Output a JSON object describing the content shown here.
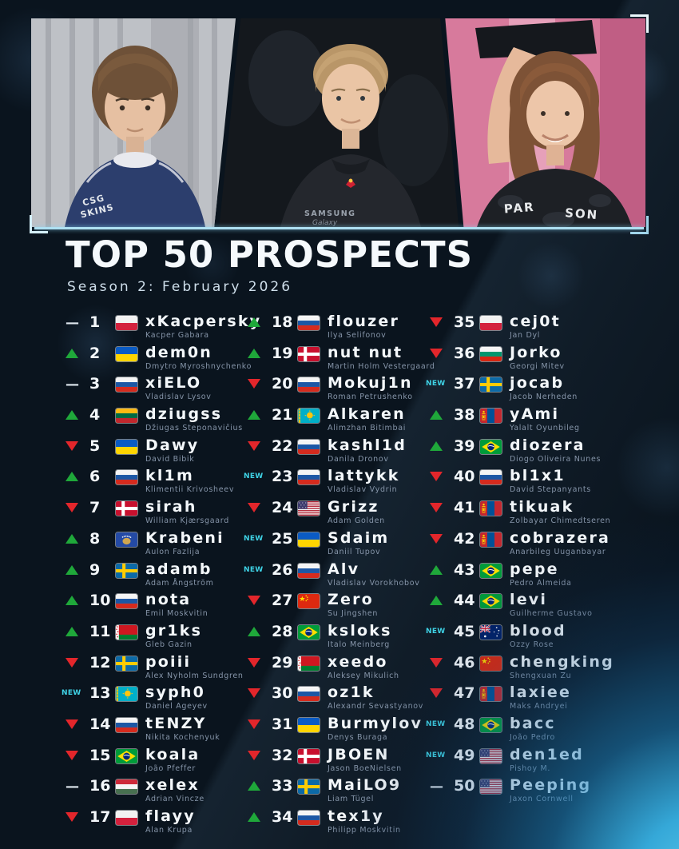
{
  "header": {
    "title": "TOP 50 PROSPECTS",
    "subtitle": "Season 2: February 2026"
  },
  "photo_banner": {
    "photos": [
      {
        "alt": "player in navy jersey in front of grey blinds",
        "jersey_text": "CSG SKINS"
      },
      {
        "alt": "player with short blond hair on dark stage background",
        "jersey_text": "SAMSUNG Galaxy"
      },
      {
        "alt": "smiling long-haired player lifting trophy on pink background",
        "jersey_text": "PAR SON"
      }
    ]
  },
  "colors": {
    "background": "#0a141e",
    "accent_cyan": "#3fd3e6",
    "up_green": "#1fa83a",
    "down_red": "#e3262b",
    "text_primary": "#f3f7fa",
    "text_secondary": "#8695a9",
    "banner_line": "#aee0f2"
  },
  "ranking": {
    "movement_symbols": {
      "up": "▲",
      "down": "▼",
      "same": "—",
      "new": "NEW"
    },
    "columns": [
      {
        "entries": [
          {
            "rank": 1,
            "movement": "same",
            "country": "poland",
            "nickname": "xKacpersky",
            "real_name": "Kacper Gabara"
          },
          {
            "rank": 2,
            "movement": "up",
            "country": "ukraine",
            "nickname": "dem0n",
            "real_name": "Dmytro Myroshnychenko"
          },
          {
            "rank": 3,
            "movement": "same",
            "country": "russia",
            "nickname": "xiELO",
            "real_name": "Vladislav Lysov"
          },
          {
            "rank": 4,
            "movement": "up",
            "country": "lithuania",
            "nickname": "dziugss",
            "real_name": "Džiugas Steponavičius"
          },
          {
            "rank": 5,
            "movement": "down",
            "country": "ukraine",
            "nickname": "Dawy",
            "real_name": "David Bibik"
          },
          {
            "rank": 6,
            "movement": "up",
            "country": "russia",
            "nickname": "kl1m",
            "real_name": "Klimentii Krivosheev"
          },
          {
            "rank": 7,
            "movement": "down",
            "country": "denmark",
            "nickname": "sirah",
            "real_name": "William Kjærsgaard"
          },
          {
            "rank": 8,
            "movement": "up",
            "country": "kosovo",
            "nickname": "Krabeni",
            "real_name": "Aulon Fazlija"
          },
          {
            "rank": 9,
            "movement": "up",
            "country": "sweden",
            "nickname": "adamb",
            "real_name": "Adam Ångström"
          },
          {
            "rank": 10,
            "movement": "up",
            "country": "russia",
            "nickname": "nota",
            "real_name": "Emil Moskvitin"
          },
          {
            "rank": 11,
            "movement": "up",
            "country": "belarus",
            "nickname": "gr1ks",
            "real_name": "Gleb Gazin"
          },
          {
            "rank": 12,
            "movement": "down",
            "country": "sweden",
            "nickname": "poiii",
            "real_name": "Alex Nyholm Sundgren"
          },
          {
            "rank": 13,
            "movement": "new",
            "country": "kazakhstan",
            "nickname": "syph0",
            "real_name": "Daniel Ageyev"
          },
          {
            "rank": 14,
            "movement": "down",
            "country": "russia",
            "nickname": "tENZY",
            "real_name": "Nikita Kochenyuk"
          },
          {
            "rank": 15,
            "movement": "down",
            "country": "brazil",
            "nickname": "koala",
            "real_name": "João Pfeffer"
          },
          {
            "rank": 16,
            "movement": "same",
            "country": "hungary",
            "nickname": "xelex",
            "real_name": "Adrian Vincze"
          },
          {
            "rank": 17,
            "movement": "down",
            "country": "poland",
            "nickname": "flayy",
            "real_name": "Alan Krupa"
          }
        ]
      },
      {
        "entries": [
          {
            "rank": 18,
            "movement": "up",
            "country": "russia",
            "nickname": "flouzer",
            "real_name": "Ilya Selifonov"
          },
          {
            "rank": 19,
            "movement": "up",
            "country": "denmark",
            "nickname": "nut nut",
            "real_name": "Martin Holm Vestergaard"
          },
          {
            "rank": 20,
            "movement": "down",
            "country": "russia",
            "nickname": "Mokuj1n",
            "real_name": "Roman Petrushenko"
          },
          {
            "rank": 21,
            "movement": "up",
            "country": "kazakhstan",
            "nickname": "Alkaren",
            "real_name": "Alimzhan Bitimbai"
          },
          {
            "rank": 22,
            "movement": "down",
            "country": "russia",
            "nickname": "kashl1d",
            "real_name": "Danila Dronov"
          },
          {
            "rank": 23,
            "movement": "new",
            "country": "russia",
            "nickname": "lattykk",
            "real_name": "Vladislav Vydrin"
          },
          {
            "rank": 24,
            "movement": "down",
            "country": "usa",
            "nickname": "Grizz",
            "real_name": "Adam Golden"
          },
          {
            "rank": 25,
            "movement": "new",
            "country": "ukraine",
            "nickname": "Sdaim",
            "real_name": "Daniil Tupov"
          },
          {
            "rank": 26,
            "movement": "new",
            "country": "russia",
            "nickname": "Alv",
            "real_name": "Vladislav Vorokhobov"
          },
          {
            "rank": 27,
            "movement": "down",
            "country": "china",
            "nickname": "Zero",
            "real_name": "Su Jingshen"
          },
          {
            "rank": 28,
            "movement": "up",
            "country": "brazil",
            "nickname": "ksloks",
            "real_name": "Italo Meinberg"
          },
          {
            "rank": 29,
            "movement": "down",
            "country": "belarus",
            "nickname": "xeedo",
            "real_name": "Aleksey Mikulich"
          },
          {
            "rank": 30,
            "movement": "down",
            "country": "russia",
            "nickname": "oz1k",
            "real_name": "Alexandr Sevastyanov"
          },
          {
            "rank": 31,
            "movement": "down",
            "country": "ukraine",
            "nickname": "Burmylov",
            "real_name": "Denys Buraga"
          },
          {
            "rank": 32,
            "movement": "down",
            "country": "denmark",
            "nickname": "JBOEN",
            "real_name": "Jason BoeNielsen"
          },
          {
            "rank": 33,
            "movement": "up",
            "country": "sweden",
            "nickname": "MaiLO9",
            "real_name": "Liam Tügel"
          },
          {
            "rank": 34,
            "movement": "up",
            "country": "russia",
            "nickname": "tex1y",
            "real_name": "Philipp Moskvitin"
          }
        ]
      },
      {
        "entries": [
          {
            "rank": 35,
            "movement": "down",
            "country": "poland",
            "nickname": "cej0t",
            "real_name": "Jan Dyl"
          },
          {
            "rank": 36,
            "movement": "down",
            "country": "bulgaria",
            "nickname": "Jorko",
            "real_name": "Georgi Mitev"
          },
          {
            "rank": 37,
            "movement": "new",
            "country": "sweden",
            "nickname": "jocab",
            "real_name": "Jacob Nerheden"
          },
          {
            "rank": 38,
            "movement": "up",
            "country": "mongolia",
            "nickname": "yAmi",
            "real_name": "Yalalt Oyunbileg"
          },
          {
            "rank": 39,
            "movement": "up",
            "country": "brazil",
            "nickname": "diozera",
            "real_name": "Diogo Oliveira Nunes"
          },
          {
            "rank": 40,
            "movement": "down",
            "country": "russia",
            "nickname": "bl1x1",
            "real_name": "David Stepanyants"
          },
          {
            "rank": 41,
            "movement": "down",
            "country": "mongolia",
            "nickname": "tikuak",
            "real_name": "Zolbayar Chimedtseren"
          },
          {
            "rank": 42,
            "movement": "down",
            "country": "mongolia",
            "nickname": "cobrazera",
            "real_name": "Anarbileg Uuganbayar"
          },
          {
            "rank": 43,
            "movement": "up",
            "country": "brazil",
            "nickname": "pepe",
            "real_name": "Pedro Almeida"
          },
          {
            "rank": 44,
            "movement": "up",
            "country": "brazil",
            "nickname": "levi",
            "real_name": "Guilherme Gustavo"
          },
          {
            "rank": 45,
            "movement": "new",
            "country": "australia",
            "nickname": "blood",
            "real_name": "Ozzy Rose"
          },
          {
            "rank": 46,
            "movement": "down",
            "country": "china",
            "nickname": "chengking",
            "real_name": "Shengxuan Zu"
          },
          {
            "rank": 47,
            "movement": "down",
            "country": "mongolia",
            "nickname": "laxiee",
            "real_name": "Maks Andryei"
          },
          {
            "rank": 48,
            "movement": "new",
            "country": "brazil",
            "nickname": "bacc",
            "real_name": "João Pedro"
          },
          {
            "rank": 49,
            "movement": "new",
            "country": "usa",
            "nickname": "den1ed",
            "real_name": "Pishoy M."
          },
          {
            "rank": 50,
            "movement": "same",
            "country": "usa",
            "nickname": "Peeping",
            "real_name": "Jaxon Cornwell"
          }
        ]
      }
    ]
  }
}
